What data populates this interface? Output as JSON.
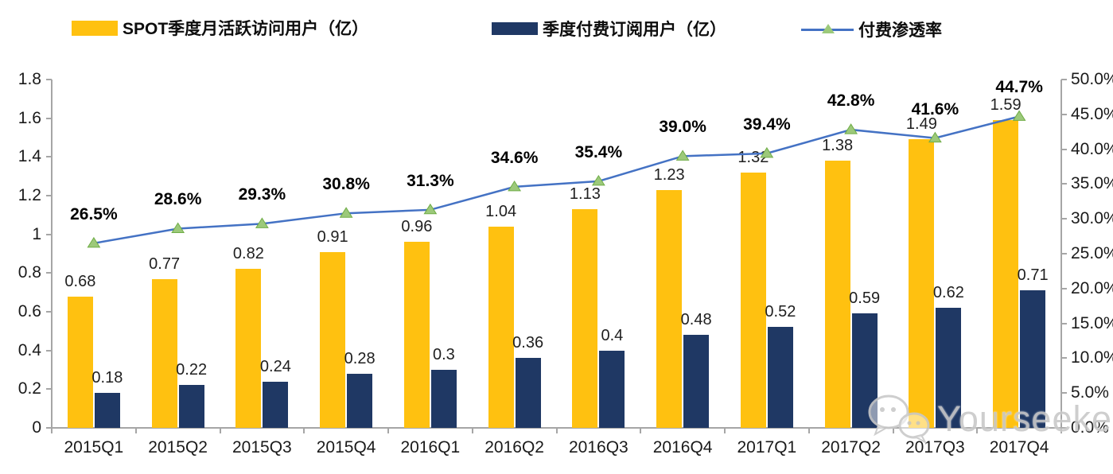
{
  "legend": {
    "items": [
      {
        "label": "SPOT季度月活跃访问用户（亿）",
        "type": "bar",
        "color": "#FFC110"
      },
      {
        "label": "季度付费订阅用户（亿）",
        "type": "bar",
        "color": "#1F3864"
      },
      {
        "label": "付费渗透率",
        "type": "line",
        "color": "#4472C4",
        "marker_color": "#9CC97A"
      }
    ]
  },
  "watermark": {
    "text": "Yourseeker",
    "icon": "wechat-icon"
  },
  "chart_data": {
    "type": "bar+line combo",
    "categories": [
      "2015Q1",
      "2015Q2",
      "2015Q3",
      "2015Q4",
      "2016Q1",
      "2016Q2",
      "2016Q3",
      "2016Q4",
      "2017Q1",
      "2017Q2",
      "2017Q3",
      "2017Q4"
    ],
    "series": [
      {
        "name": "SPOT季度月活跃访问用户（亿）",
        "type": "bar",
        "axis": "left",
        "color": "#FFC110",
        "values": [
          0.68,
          0.77,
          0.82,
          0.91,
          0.96,
          1.04,
          1.13,
          1.23,
          1.32,
          1.38,
          1.49,
          1.59
        ],
        "labels": [
          "0.68",
          "0.77",
          "0.82",
          "0.91",
          "0.96",
          "1.04",
          "1.13",
          "1.23",
          "1.32",
          "1.38",
          "1.49",
          "1.59"
        ]
      },
      {
        "name": "季度付费订阅用户（亿）",
        "type": "bar",
        "axis": "left",
        "color": "#1F3864",
        "values": [
          0.18,
          0.22,
          0.24,
          0.28,
          0.3,
          0.36,
          0.4,
          0.48,
          0.52,
          0.59,
          0.62,
          0.71
        ],
        "labels": [
          "0.18",
          "0.22",
          "0.24",
          "0.28",
          "0.3",
          "0.36",
          "0.4",
          "0.48",
          "0.52",
          "0.59",
          "0.62",
          "0.71"
        ]
      },
      {
        "name": "付费渗透率",
        "type": "line",
        "axis": "right",
        "color": "#4472C4",
        "marker": "triangle",
        "marker_color": "#9CC97A",
        "marker_edge_color": "#70AD47",
        "values": [
          26.5,
          28.6,
          29.3,
          30.8,
          31.3,
          34.6,
          35.4,
          39.0,
          39.4,
          42.8,
          41.6,
          44.7
        ],
        "labels": [
          "26.5%",
          "28.6%",
          "29.3%",
          "30.8%",
          "31.3%",
          "34.6%",
          "35.4%",
          "39.0%",
          "39.4%",
          "42.8%",
          "41.6%",
          "44.7%"
        ]
      }
    ],
    "left_axis": {
      "min": 0,
      "max": 1.8,
      "tick_step": 0.2,
      "ticks": [
        "0",
        "0.2",
        "0.4",
        "0.6",
        "0.8",
        "1",
        "1.2",
        "1.4",
        "1.6",
        "1.8"
      ]
    },
    "right_axis": {
      "min": 0,
      "max": 50,
      "tick_step": 5,
      "ticks": [
        "0.0%",
        "5.0%",
        "10.0%",
        "15.0%",
        "20.0%",
        "25.0%",
        "30.0%",
        "35.0%",
        "40.0%",
        "45.0%",
        "50.0%"
      ]
    },
    "grid": false,
    "legend_position": "top",
    "axis_color": "#A6A6A6"
  }
}
